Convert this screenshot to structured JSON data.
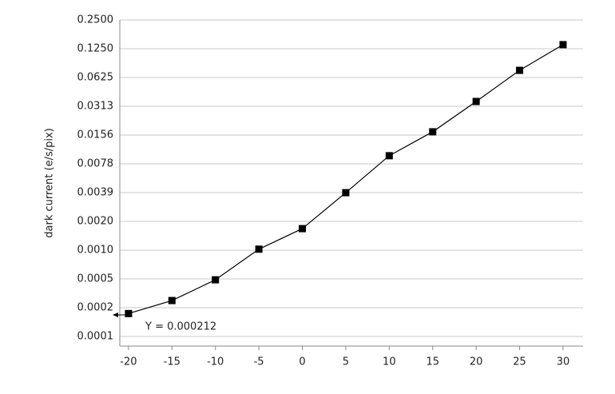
{
  "chart_data": {
    "type": "line",
    "y_label": "dark current (e/s/pix)",
    "annotation": "Y = 0.000212",
    "x": [
      -20,
      -15,
      -10,
      -5,
      0,
      5,
      10,
      15,
      20,
      25,
      30
    ],
    "series": [
      {
        "color": "#000000",
        "values": [
          0.000212,
          0.00029,
          0.000478,
          0.001,
          0.00164,
          0.0039,
          0.0095,
          0.0169,
          0.0351,
          0.0743,
          0.138
        ]
      }
    ],
    "xlim": [
      -21,
      32.3
    ],
    "xticks": [
      -20,
      -15,
      -10,
      -5,
      0,
      5,
      10,
      15,
      20,
      25,
      30
    ],
    "ylim": [
      9.69e-05,
      0.25
    ],
    "y_log": true,
    "grid": true,
    "yticks": [
      {
        "value": 0.0001220703125,
        "label": "0.0001"
      },
      {
        "value": 0.000244140625,
        "label": "0.0002"
      },
      {
        "value": 0.00048828125,
        "label": "0.0005"
      },
      {
        "value": 0.0009765625,
        "label": "0.0010"
      },
      {
        "value": 0.001953125,
        "label": "0.0020"
      },
      {
        "value": 0.00390625,
        "label": "0.0039"
      },
      {
        "value": 0.0078125,
        "label": "0.0078"
      },
      {
        "value": 0.015625,
        "label": "0.0156"
      },
      {
        "value": 0.03125,
        "label": "0.0313"
      },
      {
        "value": 0.0625,
        "label": "0.0625"
      },
      {
        "value": 0.125,
        "label": "0.1250"
      },
      {
        "value": 0.25,
        "label": "0.2500"
      }
    ]
  }
}
